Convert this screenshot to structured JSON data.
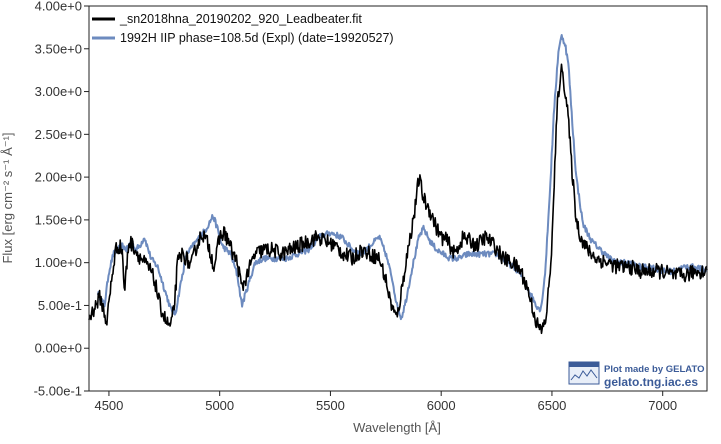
{
  "chart_data": {
    "type": "line",
    "title": "",
    "xlabel": "Wavelength [Å]",
    "ylabel": "Flux [erg cm⁻² s⁻¹ Å⁻¹]",
    "xlim": [
      4410,
      7200
    ],
    "ylim": [
      -0.5,
      4.0
    ],
    "x_ticks": [
      4500,
      5000,
      5500,
      6000,
      6500,
      7000
    ],
    "x_tick_labels": [
      "4500",
      "5000",
      "5500",
      "6000",
      "6500",
      "7000"
    ],
    "y_ticks": [
      -0.5,
      0.0,
      0.5,
      1.0,
      1.5,
      2.0,
      2.5,
      3.0,
      3.5,
      4.0
    ],
    "y_tick_labels": [
      "-5.00e-1",
      "0.00e+0",
      "5.00e-1",
      "1.00e+0",
      "1.50e+0",
      "2.00e+0",
      "2.50e+0",
      "3.00e+0",
      "3.50e+0",
      "4.00e+0"
    ],
    "grid": false,
    "legend_position": "top-left",
    "series": [
      {
        "name": "_sn2018hna_20190202_920_Leadbeater.fit",
        "color": "#000000",
        "noise": 0.09,
        "x": [
          4410,
          4430,
          4460,
          4490,
          4510,
          4530,
          4545,
          4560,
          4570,
          4590,
          4610,
          4630,
          4660,
          4690,
          4710,
          4730,
          4760,
          4780,
          4795,
          4810,
          4830,
          4850,
          4870,
          4890,
          4920,
          4950,
          4975,
          5000,
          5020,
          5040,
          5060,
          5080,
          5100,
          5130,
          5160,
          5200,
          5240,
          5280,
          5320,
          5360,
          5400,
          5440,
          5480,
          5520,
          5560,
          5600,
          5640,
          5680,
          5720,
          5750,
          5770,
          5790,
          5800,
          5820,
          5840,
          5860,
          5880,
          5900,
          5920,
          5950,
          5980,
          6000,
          6030,
          6060,
          6080,
          6100,
          6130,
          6160,
          6200,
          6240,
          6280,
          6320,
          6360,
          6390,
          6410,
          6430,
          6450,
          6470,
          6490,
          6505,
          6515,
          6525,
          6540,
          6550,
          6570,
          6590,
          6610,
          6630,
          6660,
          6700,
          6750,
          6800,
          6850,
          6900,
          6950,
          7000,
          7050,
          7100,
          7150,
          7200
        ],
        "y": [
          0.35,
          0.45,
          0.6,
          0.3,
          0.75,
          1.15,
          1.2,
          1.15,
          0.65,
          1.25,
          1.2,
          1.1,
          1.0,
          0.9,
          0.75,
          0.5,
          0.3,
          0.25,
          0.5,
          1.0,
          1.1,
          1.05,
          0.95,
          1.15,
          1.35,
          1.2,
          0.95,
          1.3,
          1.35,
          1.25,
          1.1,
          1.0,
          0.7,
          0.9,
          1.1,
          1.15,
          1.15,
          1.1,
          1.15,
          1.2,
          1.25,
          1.3,
          1.25,
          1.2,
          1.1,
          1.05,
          1.15,
          1.1,
          1.05,
          0.8,
          0.55,
          0.4,
          0.35,
          0.65,
          1.0,
          1.3,
          1.6,
          2.0,
          1.75,
          1.6,
          1.4,
          1.3,
          1.25,
          1.1,
          1.2,
          1.3,
          1.25,
          1.2,
          1.3,
          1.2,
          1.05,
          1.0,
          0.9,
          0.7,
          0.5,
          0.3,
          0.2,
          0.3,
          0.8,
          1.5,
          2.3,
          2.85,
          3.25,
          3.2,
          2.8,
          2.1,
          1.5,
          1.3,
          1.15,
          1.05,
          1.0,
          0.95,
          0.95,
          0.9,
          0.9,
          0.9,
          0.85,
          0.85,
          0.9,
          0.9
        ]
      },
      {
        "name": "1992H  IIP  phase=108.5d (Expl)  (date=19920527)",
        "color": "#6d8bbf",
        "noise": 0.035,
        "x": [
          4450,
          4480,
          4500,
          4520,
          4540,
          4560,
          4580,
          4600,
          4620,
          4640,
          4660,
          4690,
          4720,
          4750,
          4780,
          4800,
          4820,
          4850,
          4880,
          4910,
          4940,
          4970,
          4990,
          5010,
          5030,
          5050,
          5080,
          5100,
          5130,
          5160,
          5200,
          5250,
          5300,
          5350,
          5400,
          5450,
          5500,
          5550,
          5600,
          5640,
          5680,
          5720,
          5750,
          5780,
          5800,
          5820,
          5840,
          5870,
          5900,
          5920,
          5950,
          5980,
          6010,
          6040,
          6080,
          6120,
          6160,
          6200,
          6250,
          6300,
          6350,
          6400,
          6430,
          6450,
          6470,
          6490,
          6510,
          6530,
          6545,
          6560,
          6575,
          6590,
          6610,
          6640,
          6680,
          6720,
          6760,
          6800,
          6850,
          6900,
          6950,
          7000,
          7050,
          7100,
          7150,
          7200
        ],
        "y": [
          0.65,
          0.5,
          0.9,
          1.1,
          1.15,
          1.2,
          1.15,
          1.25,
          1.15,
          1.2,
          1.3,
          1.05,
          0.95,
          0.7,
          0.45,
          0.4,
          0.7,
          1.1,
          1.2,
          1.3,
          1.4,
          1.55,
          1.4,
          1.2,
          1.15,
          1.1,
          0.85,
          0.5,
          0.75,
          1.0,
          1.05,
          1.05,
          1.05,
          1.1,
          1.15,
          1.3,
          1.35,
          1.3,
          1.15,
          1.1,
          1.2,
          1.3,
          1.1,
          0.8,
          0.5,
          0.35,
          0.55,
          0.95,
          1.3,
          1.4,
          1.25,
          1.15,
          1.1,
          1.05,
          1.05,
          1.1,
          1.1,
          1.1,
          1.1,
          1.0,
          0.9,
          0.65,
          0.5,
          0.45,
          0.9,
          1.8,
          2.8,
          3.5,
          3.65,
          3.55,
          3.3,
          2.7,
          2.0,
          1.45,
          1.25,
          1.15,
          1.05,
          1.0,
          1.0,
          0.95,
          0.95,
          0.9,
          0.9,
          0.95,
          0.95,
          0.9
        ]
      }
    ]
  },
  "credit": {
    "line1": "Plot made by GELATO",
    "line2": "gelato.tng.iac.es",
    "logo_text": "GELATO"
  }
}
